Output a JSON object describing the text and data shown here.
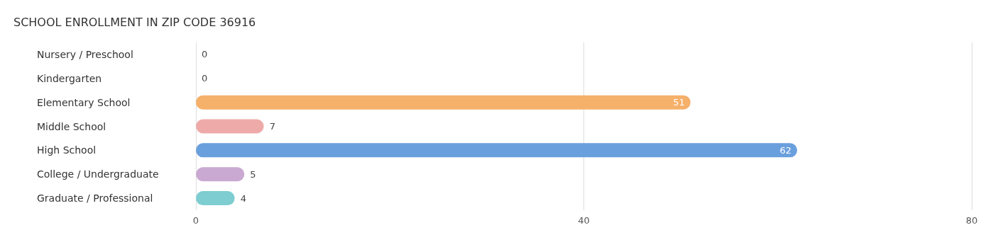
{
  "chart_data": {
    "type": "bar",
    "orientation": "horizontal",
    "title": "SCHOOL ENROLLMENT IN ZIP CODE 36916",
    "categories": [
      "Nursery / Preschool",
      "Kindergarten",
      "Elementary School",
      "Middle School",
      "High School",
      "College / Undergraduate",
      "Graduate / Professional"
    ],
    "values": [
      0,
      0,
      51,
      7,
      62,
      5,
      4
    ],
    "colors": [
      "#aab4e8",
      "#f6a7c3",
      "#f5b06a",
      "#eeaaa8",
      "#6a9fdd",
      "#c9a9d2",
      "#7dcdd1"
    ],
    "xlim": [
      0,
      80
    ],
    "xticks": [
      0,
      40,
      80
    ],
    "grid": "x",
    "data_labels": true
  }
}
